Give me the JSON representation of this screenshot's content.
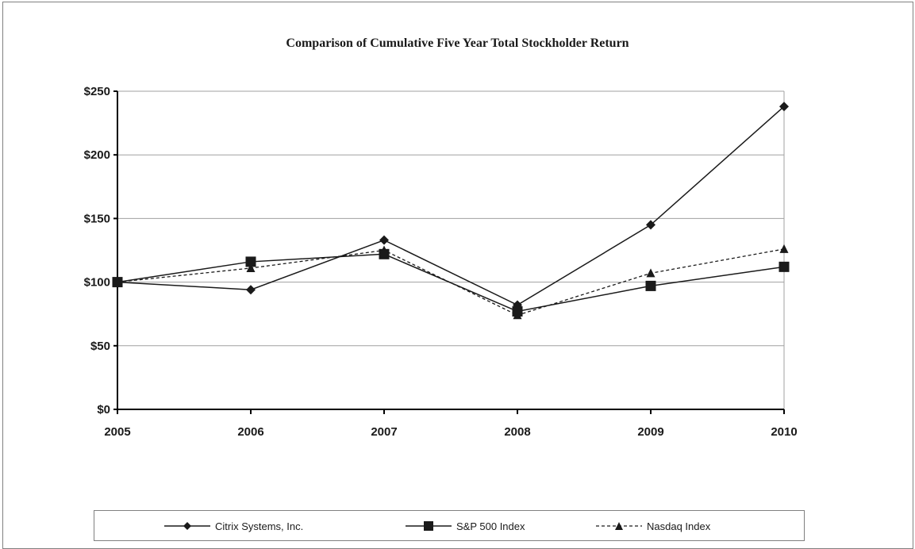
{
  "chart_data": {
    "type": "line",
    "title": "Comparison of Cumulative Five Year Total Stockholder Return",
    "xlabel": "",
    "ylabel": "",
    "categories": [
      "2005",
      "2006",
      "2007",
      "2008",
      "2009",
      "2010"
    ],
    "ylim": [
      0,
      250
    ],
    "yticks": [
      0,
      50,
      100,
      150,
      200,
      250
    ],
    "ytick_labels": [
      "$0",
      "$50",
      "$100",
      "$150",
      "$200",
      "$250"
    ],
    "grid": true,
    "legend_position": "bottom",
    "series": [
      {
        "name": "Citrix Systems, Inc.",
        "values": [
          100,
          94,
          133,
          82,
          145,
          238
        ],
        "marker": "diamond",
        "line": "solid",
        "color": "#1a1a1a"
      },
      {
        "name": "S&P 500 Index",
        "values": [
          100,
          116,
          122,
          77,
          97,
          112
        ],
        "marker": "square",
        "line": "solid",
        "color": "#1a1a1a"
      },
      {
        "name": "Nasdaq Index",
        "values": [
          100,
          111,
          125,
          74,
          107,
          126
        ],
        "marker": "triangle",
        "line": "dashed",
        "color": "#1a1a1a"
      }
    ]
  }
}
